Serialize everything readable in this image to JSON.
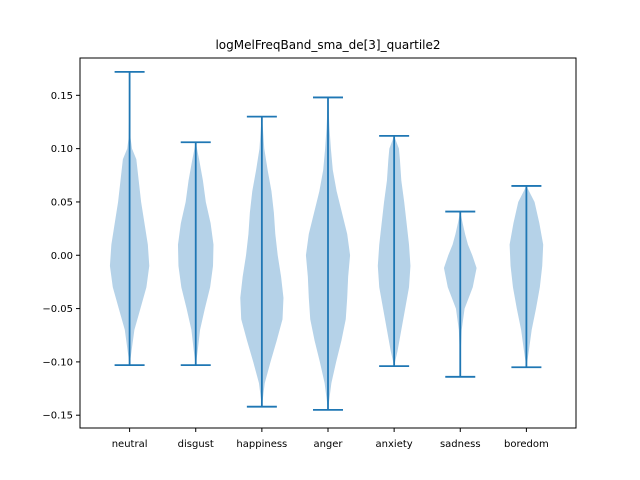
{
  "chart_data": {
    "type": "violin",
    "title": "logMelFreqBand_sma_de[3]_quartile2",
    "xlabel": "",
    "ylabel": "",
    "ylim": [
      -0.162,
      0.185
    ],
    "yticks": [
      -0.15,
      -0.1,
      -0.05,
      0.0,
      0.05,
      0.1,
      0.15
    ],
    "ytick_labels": [
      "−0.15",
      "−0.10",
      "−0.05",
      "0.00",
      "0.05",
      "0.10",
      "0.15"
    ],
    "categories": [
      "neutral",
      "disgust",
      "happiness",
      "anger",
      "anxiety",
      "sadness",
      "boredom"
    ],
    "series": [
      {
        "category": "neutral",
        "min": -0.103,
        "max": 0.172,
        "profile": [
          [
            -0.103,
            0.0
          ],
          [
            -0.09,
            0.08
          ],
          [
            -0.07,
            0.2
          ],
          [
            -0.05,
            0.45
          ],
          [
            -0.03,
            0.7
          ],
          [
            -0.01,
            0.82
          ],
          [
            0.01,
            0.76
          ],
          [
            0.03,
            0.62
          ],
          [
            0.05,
            0.48
          ],
          [
            0.07,
            0.38
          ],
          [
            0.09,
            0.28
          ],
          [
            0.1,
            0.1
          ],
          [
            0.11,
            0.04
          ],
          [
            0.13,
            0.02
          ],
          [
            0.15,
            0.01
          ],
          [
            0.172,
            0.0
          ]
        ]
      },
      {
        "category": "disgust",
        "min": -0.103,
        "max": 0.106,
        "profile": [
          [
            -0.103,
            0.0
          ],
          [
            -0.09,
            0.08
          ],
          [
            -0.07,
            0.18
          ],
          [
            -0.05,
            0.38
          ],
          [
            -0.03,
            0.6
          ],
          [
            -0.01,
            0.72
          ],
          [
            0.01,
            0.74
          ],
          [
            0.03,
            0.62
          ],
          [
            0.05,
            0.42
          ],
          [
            0.07,
            0.3
          ],
          [
            0.09,
            0.14
          ],
          [
            0.106,
            0.0
          ]
        ]
      },
      {
        "category": "happiness",
        "min": -0.142,
        "max": 0.13,
        "profile": [
          [
            -0.142,
            0.0
          ],
          [
            -0.12,
            0.12
          ],
          [
            -0.1,
            0.36
          ],
          [
            -0.08,
            0.62
          ],
          [
            -0.06,
            0.86
          ],
          [
            -0.04,
            0.9
          ],
          [
            -0.02,
            0.8
          ],
          [
            0.0,
            0.66
          ],
          [
            0.02,
            0.56
          ],
          [
            0.04,
            0.5
          ],
          [
            0.06,
            0.4
          ],
          [
            0.08,
            0.24
          ],
          [
            0.1,
            0.1
          ],
          [
            0.12,
            0.04
          ],
          [
            0.13,
            0.0
          ]
        ]
      },
      {
        "category": "anger",
        "min": -0.145,
        "max": 0.148,
        "profile": [
          [
            -0.145,
            0.0
          ],
          [
            -0.12,
            0.14
          ],
          [
            -0.1,
            0.34
          ],
          [
            -0.08,
            0.56
          ],
          [
            -0.06,
            0.74
          ],
          [
            -0.04,
            0.8
          ],
          [
            -0.02,
            0.84
          ],
          [
            0.0,
            0.92
          ],
          [
            0.02,
            0.8
          ],
          [
            0.04,
            0.58
          ],
          [
            0.06,
            0.36
          ],
          [
            0.08,
            0.2
          ],
          [
            0.1,
            0.12
          ],
          [
            0.12,
            0.06
          ],
          [
            0.148,
            0.0
          ]
        ]
      },
      {
        "category": "anxiety",
        "min": -0.104,
        "max": 0.112,
        "profile": [
          [
            -0.104,
            0.0
          ],
          [
            -0.09,
            0.14
          ],
          [
            -0.07,
            0.3
          ],
          [
            -0.05,
            0.46
          ],
          [
            -0.03,
            0.62
          ],
          [
            -0.01,
            0.68
          ],
          [
            0.01,
            0.62
          ],
          [
            0.03,
            0.52
          ],
          [
            0.05,
            0.42
          ],
          [
            0.07,
            0.3
          ],
          [
            0.09,
            0.24
          ],
          [
            0.1,
            0.2
          ],
          [
            0.112,
            0.0
          ]
        ]
      },
      {
        "category": "sadness",
        "min": -0.114,
        "max": 0.041,
        "profile": [
          [
            -0.114,
            0.0
          ],
          [
            -0.09,
            0.02
          ],
          [
            -0.07,
            0.06
          ],
          [
            -0.05,
            0.18
          ],
          [
            -0.03,
            0.52
          ],
          [
            -0.012,
            0.68
          ],
          [
            0.0,
            0.5
          ],
          [
            0.01,
            0.32
          ],
          [
            0.02,
            0.2
          ],
          [
            0.03,
            0.1
          ],
          [
            0.041,
            0.0
          ]
        ]
      },
      {
        "category": "boredom",
        "min": -0.105,
        "max": 0.065,
        "profile": [
          [
            -0.105,
            0.0
          ],
          [
            -0.09,
            0.1
          ],
          [
            -0.07,
            0.22
          ],
          [
            -0.05,
            0.4
          ],
          [
            -0.03,
            0.56
          ],
          [
            -0.01,
            0.66
          ],
          [
            0.01,
            0.7
          ],
          [
            0.03,
            0.54
          ],
          [
            0.05,
            0.34
          ],
          [
            0.065,
            0.0
          ]
        ]
      }
    ],
    "colors": {
      "fill": "#b5d2e8",
      "line": "#1f77b4"
    },
    "grid": false,
    "legend": "none"
  }
}
